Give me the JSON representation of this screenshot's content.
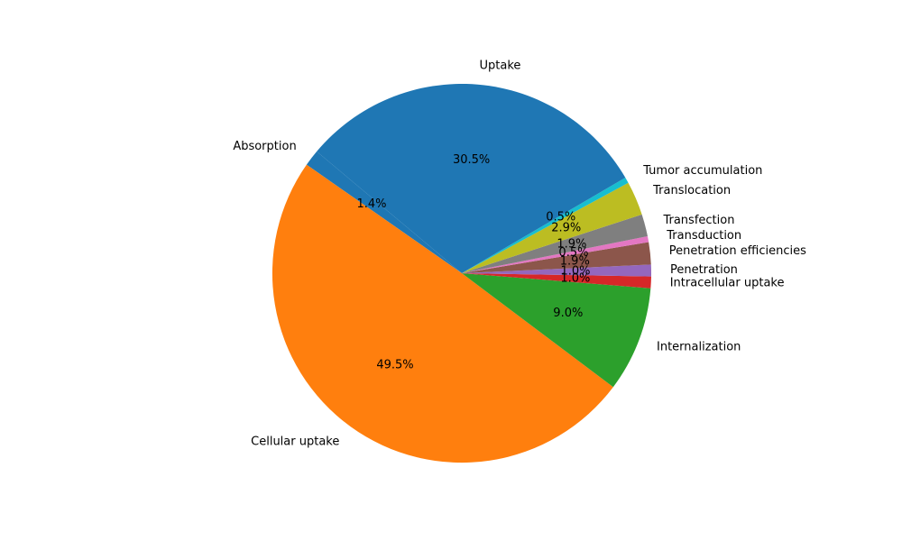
{
  "chart_data": {
    "type": "pie",
    "labels": [
      "Absorption",
      "Cellular uptake",
      "Internalization",
      "Intracellular uptake",
      "Penetration",
      "Penetration efficiencies",
      "Transduction",
      "Transfection",
      "Translocation",
      "Tumor accumulation",
      "Uptake"
    ],
    "values": [
      1.4,
      49.5,
      9.0,
      1.0,
      1.0,
      1.9,
      0.5,
      1.9,
      2.9,
      0.5,
      30.5
    ],
    "pct_labels": [
      "1.4%",
      "49.5%",
      "9.0%",
      "1.0%",
      "1.0%",
      "1.9%",
      "0.5%",
      "1.9%",
      "2.9%",
      "0.5%",
      "30.5%"
    ],
    "colors": [
      "#1f77b4",
      "#ff7f0e",
      "#2ca02c",
      "#d62728",
      "#9467bd",
      "#8c564b",
      "#e377c2",
      "#7f7f7f",
      "#bcbd22",
      "#17becf",
      "#1f77b4"
    ],
    "start_angle_deg": 140,
    "direction": "counterclockwise"
  }
}
